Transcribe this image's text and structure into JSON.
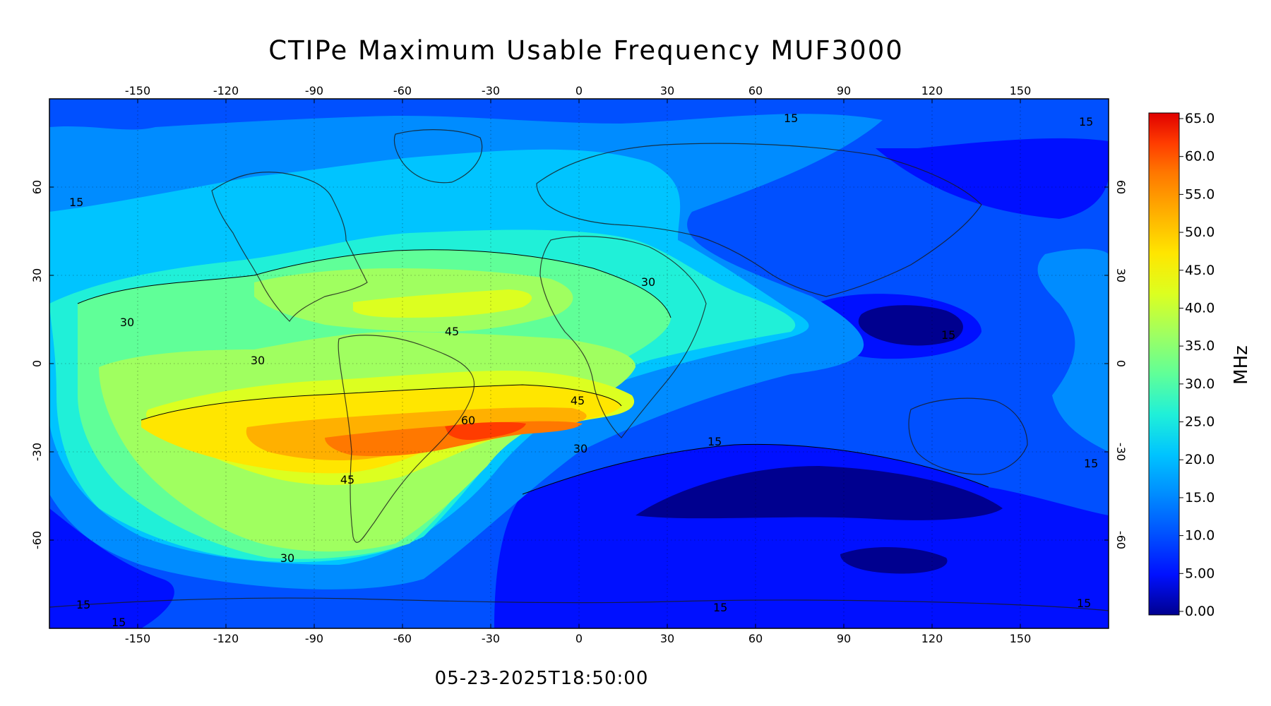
{
  "title": "CTIPe Maximum Usable Frequency MUF3000",
  "timestamp": "05-23-2025T18:50:00",
  "map": {
    "projection": "equirectangular",
    "lon_range": [
      -180,
      180
    ],
    "lat_range": [
      -90,
      90
    ],
    "lon_ticks": [
      "-150",
      "-120",
      "-90",
      "-60",
      "-30",
      "0",
      "30",
      "60",
      "90",
      "120",
      "150"
    ],
    "lat_ticks": [
      "-60",
      "-30",
      "0",
      "30",
      "60"
    ],
    "grid": "dotted",
    "coastlines": true
  },
  "colorbar": {
    "unit_label": "MHz",
    "tick_labels": [
      "65.0",
      "60.0",
      "55.0",
      "50.0",
      "45.0",
      "40.0",
      "35.0",
      "30.0",
      "25.0",
      "20.0",
      "15.0",
      "10.0",
      "5.00",
      "0.00"
    ],
    "range": [
      0,
      65
    ],
    "colors": [
      "#00008f",
      "#0010ff",
      "#0050ff",
      "#008cff",
      "#00c4ff",
      "#20f0d8",
      "#60ff98",
      "#a0ff60",
      "#dcff20",
      "#ffe600",
      "#ffb000",
      "#ff7800",
      "#ff3c00",
      "#e00000"
    ]
  },
  "contour_labels": [
    "30",
    "30",
    "30",
    "30",
    "30",
    "45",
    "45",
    "45",
    "60",
    "15",
    "15",
    "15",
    "15",
    "15",
    "15",
    "15",
    "15",
    "15",
    "15"
  ],
  "chart_data": {
    "type": "heatmap",
    "variable": "MUF3000",
    "units": "MHz",
    "x_unit": "longitude (deg)",
    "y_unit": "latitude (deg)",
    "levels_drawn": [
      5,
      10,
      15,
      20,
      25,
      30,
      35,
      40,
      45,
      50,
      55,
      60
    ],
    "features": [
      {
        "peak_value": 62,
        "center_lon": -35,
        "center_lat": -22
      },
      {
        "peak_value": 45,
        "center_lon": -40,
        "center_lat": 10
      },
      {
        "min_value": 3,
        "center_lon": 120,
        "center_lat": 15
      },
      {
        "min_value": 5,
        "center_lon": 100,
        "center_lat": -55
      }
    ]
  }
}
